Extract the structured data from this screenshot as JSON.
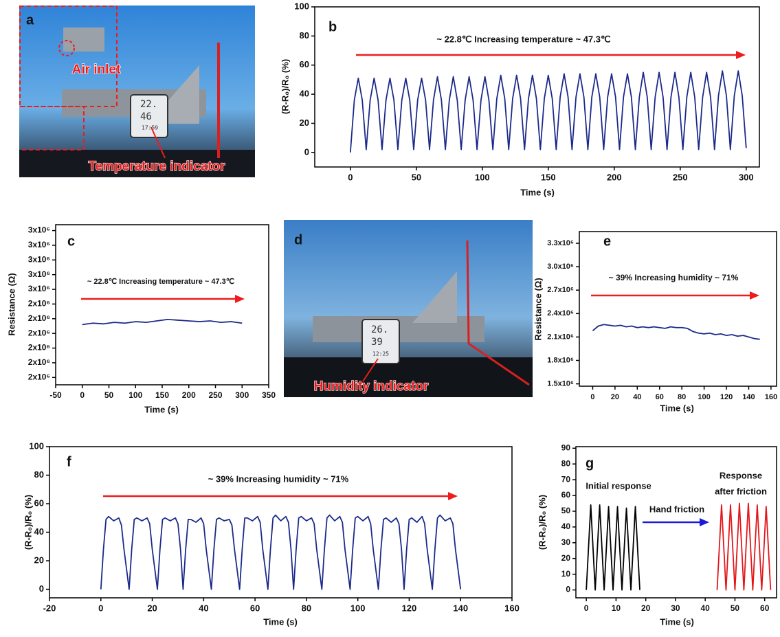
{
  "photos": [
    {
      "panel": "a",
      "annotations": [
        "Air inlet",
        "Temperature indicator"
      ],
      "display": [
        "22.",
        "46",
        "17:59"
      ]
    },
    {
      "panel": "d",
      "annotations": [
        "Humidity indicator"
      ],
      "display": [
        "26.",
        "39",
        "12:25"
      ]
    }
  ],
  "chart_data": [
    {
      "type": "line",
      "panel": "b",
      "xlabel": "Time (s)",
      "ylabel": "(R-R₀)/R₀ (%)",
      "xlim": [
        -27,
        310
      ],
      "ylim": [
        -10,
        100
      ],
      "xticks": [
        0,
        50,
        100,
        150,
        200,
        250,
        300
      ],
      "yticks": [
        0,
        20,
        40,
        60,
        80,
        100
      ],
      "annotation": "~ 22.8℃  Increasing temperature  ~ 47.3℃",
      "annotation_color": "#ee1c1c",
      "x": [
        0,
        3,
        6,
        9,
        12,
        15,
        18,
        21,
        24,
        27,
        30,
        33,
        36,
        39,
        42,
        45,
        48,
        51,
        54,
        57,
        60,
        63,
        66,
        69,
        72,
        75,
        78,
        81,
        84,
        87,
        90,
        93,
        96,
        99,
        102,
        105,
        108,
        111,
        114,
        117,
        120,
        123,
        126,
        129,
        132,
        135,
        138,
        141,
        144,
        147,
        150,
        153,
        156,
        159,
        162,
        165,
        168,
        171,
        174,
        177,
        180,
        183,
        186,
        189,
        192,
        195,
        198,
        201,
        204,
        207,
        210,
        213,
        216,
        219,
        222,
        225,
        228,
        231,
        234,
        237,
        240,
        243,
        246,
        249,
        252,
        255,
        258,
        261,
        264,
        267,
        270,
        273,
        276,
        279,
        282,
        285,
        288,
        291,
        294,
        297,
        300
      ],
      "series": [
        {
          "color": "#1b2a8a",
          "values": [
            0,
            36,
            51,
            36,
            2,
            36,
            51,
            36,
            2,
            36,
            51,
            36,
            2,
            36,
            51,
            36,
            2,
            36,
            51,
            36,
            2,
            36,
            52,
            36,
            2,
            36,
            52,
            36,
            2,
            36,
            52,
            36,
            2,
            36,
            52,
            36,
            2,
            37,
            53,
            37,
            2,
            37,
            53,
            37,
            2,
            37,
            53,
            37,
            2,
            37,
            53,
            37,
            2,
            38,
            54,
            38,
            2,
            38,
            54,
            38,
            2,
            38,
            54,
            38,
            2,
            38,
            54,
            38,
            2,
            38,
            54,
            38,
            2,
            38,
            55,
            38,
            2,
            38,
            55,
            38,
            2,
            38,
            55,
            38,
            2,
            38,
            55,
            38,
            2,
            38,
            55,
            38,
            2,
            39,
            56,
            39,
            2,
            39,
            56,
            39,
            3
          ]
        }
      ]
    },
    {
      "type": "line",
      "panel": "c",
      "xlabel": "Time (s)",
      "ylabel": "Resistance (Ω)",
      "xlim": [
        -50,
        350
      ],
      "ylim": [
        1950000,
        3040000
      ],
      "xticks": [
        -50,
        0,
        50,
        100,
        150,
        200,
        250,
        300,
        350
      ],
      "yticks": [
        {
          "value": 2000000,
          "label": "2x10⁶"
        },
        {
          "value": 2100000,
          "label": "2x10⁶"
        },
        {
          "value": 2200000,
          "label": "2x10⁶"
        },
        {
          "value": 2300000,
          "label": "2x10⁶"
        },
        {
          "value": 2400000,
          "label": "2x10⁶"
        },
        {
          "value": 2500000,
          "label": "2x10⁶"
        },
        {
          "value": 2600000,
          "label": "3x10⁶"
        },
        {
          "value": 2700000,
          "label": "3x10⁶"
        },
        {
          "value": 2800000,
          "label": "3x10⁶"
        },
        {
          "value": 2900000,
          "label": "3x10⁶"
        },
        {
          "value": 3000000,
          "label": "3x10⁶"
        }
      ],
      "annotation": "~ 22.8℃  Increasing temperature  ~ 47.3℃",
      "annotation_color": "#ee1c1c",
      "x": [
        0,
        20,
        40,
        60,
        80,
        100,
        120,
        140,
        160,
        180,
        200,
        220,
        240,
        260,
        280,
        300
      ],
      "series": [
        {
          "color": "#1b2a8a",
          "values": [
            2360000,
            2370000,
            2365000,
            2375000,
            2370000,
            2380000,
            2375000,
            2385000,
            2395000,
            2390000,
            2385000,
            2380000,
            2385000,
            2375000,
            2380000,
            2370000
          ]
        }
      ]
    },
    {
      "type": "line",
      "panel": "e",
      "xlabel": "Time (s)",
      "ylabel": "Resistance (Ω)",
      "xlim": [
        -12,
        165
      ],
      "ylim": [
        1470000,
        3450000
      ],
      "xticks": [
        0,
        20,
        40,
        60,
        80,
        100,
        120,
        140,
        160
      ],
      "yticks": [
        {
          "value": 1500000,
          "label": "1.5x10⁶"
        },
        {
          "value": 1800000,
          "label": "1.8x10⁶"
        },
        {
          "value": 2100000,
          "label": "2.1x10⁶"
        },
        {
          "value": 2400000,
          "label": "2.4x10⁶"
        },
        {
          "value": 2700000,
          "label": "2.7x10⁶"
        },
        {
          "value": 3000000,
          "label": "3.0x10⁶"
        },
        {
          "value": 3300000,
          "label": "3.3x10⁶"
        }
      ],
      "annotation": "~ 39%  Increasing humidity  ~ 71%",
      "annotation_color": "#ee1c1c",
      "x": [
        0,
        5,
        10,
        15,
        20,
        25,
        30,
        35,
        40,
        45,
        50,
        55,
        60,
        65,
        70,
        75,
        80,
        85,
        90,
        95,
        100,
        105,
        110,
        115,
        120,
        125,
        130,
        135,
        140,
        145,
        150
      ],
      "series": [
        {
          "color": "#1b2a8a",
          "values": [
            2180000,
            2240000,
            2260000,
            2250000,
            2240000,
            2250000,
            2230000,
            2240000,
            2220000,
            2230000,
            2220000,
            2230000,
            2220000,
            2210000,
            2230000,
            2220000,
            2220000,
            2210000,
            2170000,
            2150000,
            2140000,
            2150000,
            2130000,
            2140000,
            2120000,
            2130000,
            2110000,
            2120000,
            2100000,
            2080000,
            2070000
          ]
        }
      ]
    },
    {
      "type": "line",
      "panel": "f",
      "xlabel": "Time (s)",
      "ylabel": "(R-R₀)/R₀ (%)",
      "xlim": [
        -20,
        160
      ],
      "ylim": [
        -6,
        100
      ],
      "xticks": [
        -20,
        0,
        20,
        40,
        60,
        80,
        100,
        120,
        140,
        160
      ],
      "yticks": [
        0,
        20,
        40,
        60,
        80,
        100
      ],
      "annotation": "~ 39%  Increasing humidity  ~ 71%",
      "annotation_color": "#ee1c1c",
      "x": [
        0,
        1,
        2,
        3,
        5,
        7,
        8,
        9,
        11,
        12,
        13,
        14,
        16,
        18,
        19,
        20,
        22,
        23,
        24,
        25,
        27,
        29,
        30,
        31,
        32,
        33,
        34,
        35,
        37,
        39,
        40,
        41,
        43,
        44,
        45,
        46,
        48,
        50,
        51,
        52,
        54,
        55,
        56,
        57,
        59,
        61,
        62,
        63,
        65,
        66,
        67,
        68,
        70,
        72,
        73,
        74,
        75,
        76,
        77,
        78,
        80,
        82,
        83,
        84,
        86,
        87,
        88,
        89,
        91,
        93,
        94,
        95,
        97,
        98,
        99,
        100,
        102,
        104,
        105,
        106,
        108,
        109,
        110,
        111,
        113,
        115,
        116,
        117,
        118,
        119,
        120,
        121,
        123,
        125,
        126,
        127,
        129,
        130,
        131,
        132,
        134,
        136,
        137,
        138,
        140
      ],
      "series": [
        {
          "color": "#1b2a8a",
          "values": [
            0,
            28,
            49,
            51,
            48,
            50,
            45,
            28,
            0,
            28,
            49,
            50,
            48,
            50,
            46,
            28,
            0,
            28,
            49,
            50,
            48,
            50,
            46,
            28,
            0,
            28,
            49,
            49,
            47,
            50,
            46,
            28,
            0,
            28,
            49,
            50,
            48,
            49,
            45,
            28,
            0,
            28,
            50,
            50,
            48,
            51,
            47,
            28,
            0,
            28,
            50,
            52,
            48,
            51,
            47,
            28,
            0,
            28,
            50,
            51,
            48,
            50,
            46,
            28,
            0,
            28,
            50,
            52,
            48,
            51,
            47,
            28,
            0,
            28,
            50,
            51,
            48,
            51,
            46,
            28,
            0,
            28,
            49,
            50,
            47,
            50,
            46,
            28,
            0,
            28,
            49,
            50,
            47,
            51,
            46,
            28,
            0,
            28,
            50,
            52,
            48,
            50,
            46,
            28,
            0
          ]
        }
      ]
    },
    {
      "type": "line",
      "panel": "g",
      "xlabel": "Time (s)",
      "ylabel": "(R-R₀)/R₀ (%)",
      "xlim": [
        -3.5,
        64
      ],
      "ylim": [
        -5,
        91
      ],
      "xticks": [
        0,
        10,
        20,
        30,
        40,
        50,
        60
      ],
      "yticks": [
        0,
        10,
        20,
        30,
        40,
        50,
        60,
        70,
        80,
        90
      ],
      "annotations": [
        {
          "text": "Initial response",
          "color": "#1a1adb"
        },
        {
          "text": "Response",
          "color": "#1a1adb"
        },
        {
          "text": "after friction",
          "color": "#1a1adb"
        },
        {
          "text": "Hand friction",
          "color": "#1a1adb"
        }
      ],
      "series": [
        {
          "color": "#000000",
          "x": [
            0,
            1.5,
            3,
            4.5,
            6,
            7.5,
            9,
            10.5,
            12,
            13.5,
            15,
            16.5,
            18
          ],
          "values": [
            0,
            54,
            0,
            54,
            0,
            53,
            0,
            53,
            0,
            52,
            0,
            53,
            0
          ]
        },
        {
          "color": "#e3161b",
          "x": [
            44,
            45.5,
            47,
            48.5,
            50,
            51.5,
            53,
            54.5,
            56,
            57.5,
            59,
            60.5,
            62
          ],
          "values": [
            0,
            54,
            0,
            54,
            0,
            55,
            0,
            55,
            0,
            54,
            0,
            53,
            0
          ]
        }
      ]
    }
  ]
}
